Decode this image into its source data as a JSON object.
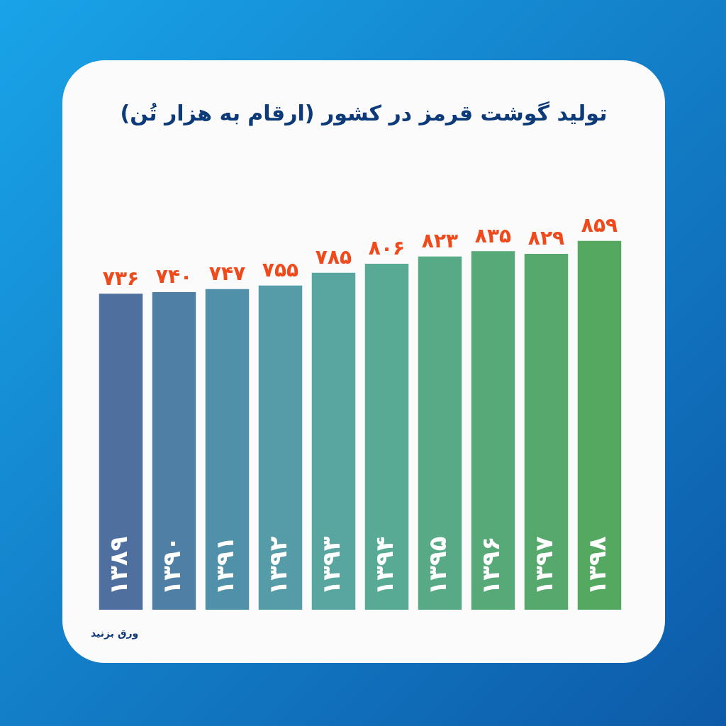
{
  "chart_data": {
    "type": "bar",
    "title": "تولید گوشت قرمز در کشور (ارقام به هزار تُن)",
    "categories": [
      "۱۳۸۹",
      "۱۳۹۰",
      "۱۳۹۱",
      "۱۳۹۲",
      "۱۳۹۳",
      "۱۳۹۴",
      "۱۳۹۵",
      "۱۳۹۶",
      "۱۳۹۷",
      "۱۳۹۸"
    ],
    "values": [
      736,
      740,
      747,
      755,
      785,
      806,
      823,
      835,
      829,
      859
    ],
    "value_labels": [
      "۷۳۶",
      "۷۴۰",
      "۷۴۷",
      "۷۵۵",
      "۷۸۵",
      "۸۰۶",
      "۸۲۳",
      "۸۳۵",
      "۸۲۹",
      "۸۵۹"
    ],
    "colors": [
      "#4f6f9f",
      "#4f7fa5",
      "#5090a8",
      "#569ca8",
      "#58a69f",
      "#58aa94",
      "#58aa86",
      "#57a978",
      "#56a86c",
      "#55a860"
    ],
    "annotations": [
      "ورق بزنید"
    ]
  }
}
